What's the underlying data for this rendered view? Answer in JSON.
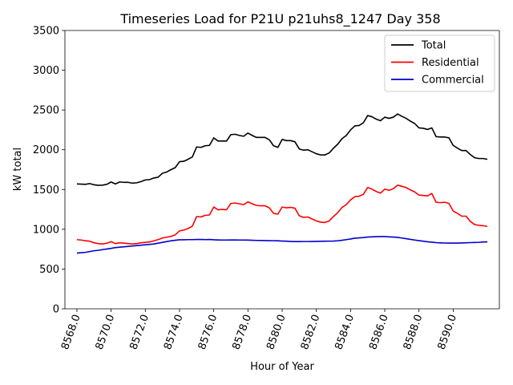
{
  "chart_data": {
    "type": "line",
    "title": "Timeseries Load for P21U p21uhs8_1247  Day 358",
    "xlabel": "Hour of Year",
    "ylabel": "kW total",
    "xlim": [
      8567.3,
      8592.7
    ],
    "ylim": [
      0,
      3500
    ],
    "x_ticks": [
      8568,
      8570,
      8572,
      8574,
      8576,
      8578,
      8580,
      8582,
      8584,
      8586,
      8588,
      8590
    ],
    "x_tick_labels": [
      "8568.0",
      "8570.0",
      "8572.0",
      "8574.0",
      "8576.0",
      "8578.0",
      "8580.0",
      "8582.0",
      "8584.0",
      "8586.0",
      "8588.0",
      "8590.0"
    ],
    "y_ticks": [
      0,
      500,
      1000,
      1500,
      2000,
      2500,
      3000,
      3500
    ],
    "y_tick_labels": [
      "0",
      "500",
      "1000",
      "1500",
      "2000",
      "2500",
      "3000",
      "3500"
    ],
    "legend_position": "top-right",
    "x_start": 8568,
    "x_step": 0.25,
    "series": [
      {
        "name": "Total",
        "color": "#000000",
        "values": [
          1570,
          1568,
          1565,
          1575,
          1560,
          1553,
          1555,
          1565,
          1595,
          1570,
          1595,
          1590,
          1590,
          1580,
          1585,
          1600,
          1620,
          1625,
          1645,
          1655,
          1705,
          1720,
          1750,
          1775,
          1850,
          1855,
          1880,
          1910,
          2035,
          2030,
          2050,
          2055,
          2150,
          2110,
          2110,
          2110,
          2190,
          2195,
          2180,
          2170,
          2210,
          2180,
          2155,
          2155,
          2155,
          2125,
          2050,
          2030,
          2130,
          2115,
          2115,
          2100,
          2010,
          1995,
          2000,
          1975,
          1950,
          1935,
          1935,
          1960,
          2020,
          2070,
          2140,
          2180,
          2250,
          2300,
          2305,
          2340,
          2430,
          2415,
          2385,
          2365,
          2410,
          2395,
          2410,
          2450,
          2420,
          2395,
          2360,
          2330,
          2275,
          2270,
          2255,
          2275,
          2165,
          2160,
          2160,
          2150,
          2055,
          2020,
          1990,
          1990,
          1940,
          1900,
          1890,
          1890,
          1880
        ]
      },
      {
        "name": "Residential",
        "color": "#ff0000",
        "values": [
          870,
          865,
          855,
          850,
          830,
          820,
          815,
          825,
          845,
          820,
          830,
          825,
          820,
          815,
          820,
          830,
          835,
          840,
          855,
          870,
          890,
          900,
          910,
          930,
          980,
          990,
          1010,
          1040,
          1160,
          1155,
          1175,
          1180,
          1280,
          1245,
          1250,
          1245,
          1325,
          1330,
          1320,
          1310,
          1345,
          1320,
          1300,
          1295,
          1295,
          1270,
          1200,
          1190,
          1280,
          1270,
          1275,
          1265,
          1170,
          1150,
          1155,
          1130,
          1105,
          1090,
          1085,
          1105,
          1160,
          1210,
          1275,
          1310,
          1370,
          1410,
          1415,
          1440,
          1525,
          1505,
          1475,
          1455,
          1505,
          1490,
          1510,
          1555,
          1540,
          1525,
          1495,
          1470,
          1430,
          1425,
          1420,
          1450,
          1340,
          1335,
          1340,
          1325,
          1230,
          1200,
          1165,
          1165,
          1100,
          1060,
          1050,
          1045,
          1035
        ]
      },
      {
        "name": "Commercial",
        "color": "#0000cc",
        "values": [
          700,
          705,
          710,
          720,
          730,
          735,
          745,
          752,
          760,
          770,
          775,
          780,
          785,
          790,
          795,
          800,
          805,
          810,
          815,
          825,
          835,
          845,
          855,
          862,
          868,
          868,
          870,
          870,
          872,
          872,
          870,
          872,
          868,
          866,
          865,
          865,
          866,
          866,
          865,
          864,
          864,
          862,
          860,
          859,
          858,
          857,
          856,
          855,
          852,
          850,
          847,
          845,
          845,
          846,
          846,
          847,
          848,
          849,
          850,
          851,
          852,
          856,
          862,
          870,
          878,
          888,
          892,
          896,
          902,
          905,
          907,
          908,
          908,
          905,
          902,
          898,
          890,
          882,
          873,
          865,
          857,
          850,
          843,
          838,
          832,
          829,
          827,
          826,
          826,
          826,
          828,
          830,
          832,
          834,
          836,
          840,
          842
        ]
      }
    ]
  }
}
